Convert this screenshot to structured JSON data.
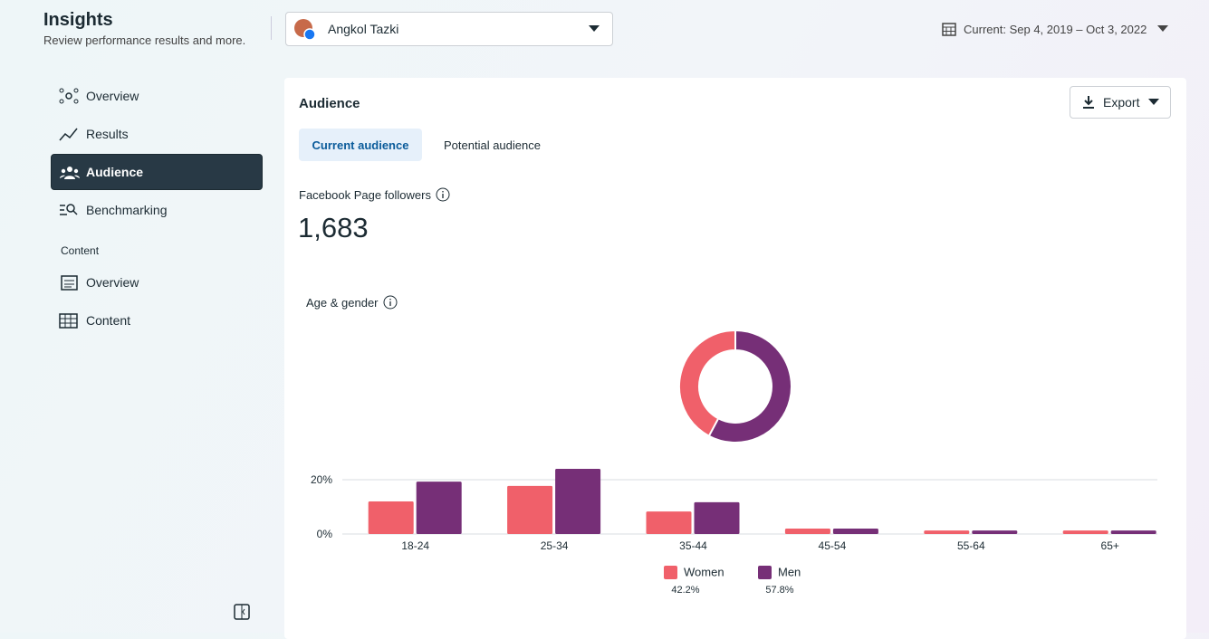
{
  "header": {
    "title": "Insights",
    "subtitle": "Review performance results and more."
  },
  "account": {
    "name": "Angkol Tazki"
  },
  "date_range": "Current: Sep 4, 2019 – Oct 3, 2022",
  "nav": {
    "items": [
      "Overview",
      "Results",
      "Audience",
      "Benchmarking"
    ],
    "active": 2,
    "section": "Content",
    "section_items": [
      "Overview",
      "Content"
    ]
  },
  "panel": {
    "title": "Audience",
    "export": "Export",
    "tabs": [
      "Current audience",
      "Potential audience"
    ],
    "followers_label": "Facebook Page followers",
    "followers": "1,683",
    "chart_title": "Age & gender"
  },
  "chart_data": [
    {
      "type": "pie",
      "values": [
        42.2,
        57.8
      ],
      "value_labels": [
        "42.2%",
        "57.8%"
      ],
      "colors": [
        "#f0606a",
        "#762f77"
      ]
    },
    {
      "type": "bar",
      "categories": [
        "18-24",
        "25-34",
        "35-44",
        "45-54",
        "55-64",
        "65+"
      ],
      "series": [
        {
          "name": "Women",
          "color": "#f0606a",
          "values": [
            12,
            17.7,
            8.3,
            2,
            1.3,
            1.3
          ]
        },
        {
          "name": "Men",
          "color": "#762f77",
          "values": [
            19.3,
            24,
            11.7,
            2,
            1.3,
            1.3
          ]
        }
      ],
      "ylim": [
        0,
        26
      ],
      "yticks": [
        {
          "value": 0,
          "label": "0%"
        },
        {
          "value": 20,
          "label": "20%"
        }
      ],
      "grid": true
    }
  ]
}
